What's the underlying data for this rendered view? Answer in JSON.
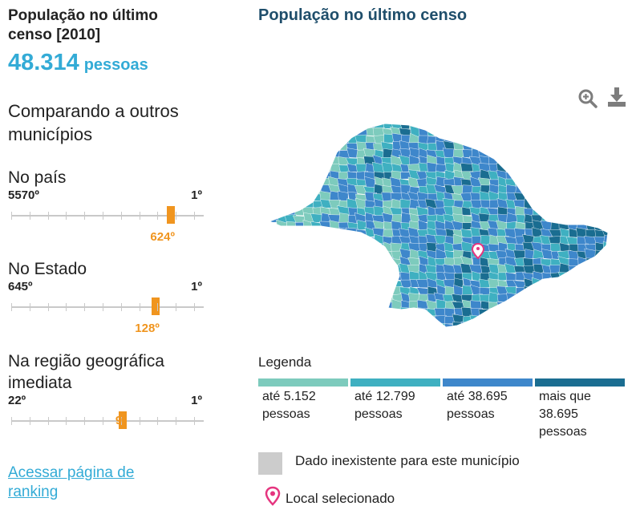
{
  "population": {
    "label": "População no último censo [2010]",
    "value": "48.314",
    "unit": "pessoas"
  },
  "comparison": {
    "title": "Comparando a outros municípios",
    "rankings": [
      {
        "title": "No país",
        "lowest": "5570º",
        "highest": "1º",
        "position": "624º",
        "total": 5570,
        "rank": 624
      },
      {
        "title": "No Estado",
        "lowest": "645º",
        "highest": "1º",
        "position": "128º",
        "total": 645,
        "rank": 128
      },
      {
        "title": "Na região geográfica imediata",
        "lowest": "22º",
        "highest": "1º",
        "position": "9º",
        "total": 22,
        "rank": 9
      }
    ],
    "ranking_link": "Acessar página de ranking"
  },
  "map": {
    "title": "População no último censo",
    "zoom_icon": "zoom-in-icon",
    "download_icon": "download-icon"
  },
  "legend": {
    "title": "Legenda",
    "items": [
      {
        "label": "até 5.152 pessoas",
        "color": "#7dcbbd"
      },
      {
        "label": "até 12.799 pessoas",
        "color": "#3fb0c1"
      },
      {
        "label": "até 38.695 pessoas",
        "color": "#3e87cb"
      },
      {
        "label": "mais que 38.695 pessoas",
        "color": "#1a6d91"
      }
    ],
    "no_data": "Dado inexistente para este município",
    "no_data_color": "#cccccc",
    "selected": "Local selecionado",
    "selected_color": "#e5357f"
  }
}
